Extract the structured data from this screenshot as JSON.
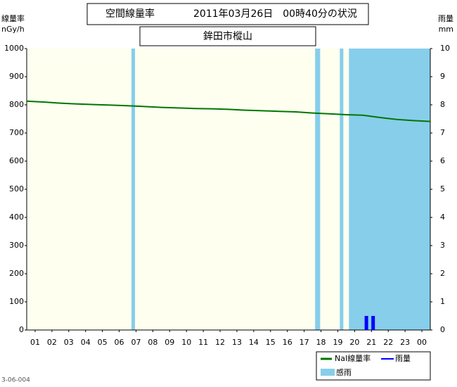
{
  "chart_data": {
    "type": "line",
    "title": "空間線量率",
    "date_text": "2011年03月26日　00時40分の状況",
    "subtitle": "鉾田市樅山",
    "y_label": "線量率",
    "y_unit": "nGy/h",
    "y2_label": "雨量",
    "y2_unit": "mm",
    "footer": "3-06-004",
    "background": "#fffff0",
    "xlim": [
      0,
      24
    ],
    "xticks": [
      {
        "value": 0.5,
        "label": "01"
      },
      {
        "value": 1.5,
        "label": "02"
      },
      {
        "value": 2.5,
        "label": "03"
      },
      {
        "value": 3.5,
        "label": "04"
      },
      {
        "value": 4.5,
        "label": "05"
      },
      {
        "value": 5.5,
        "label": "06"
      },
      {
        "value": 6.5,
        "label": "07"
      },
      {
        "value": 7.5,
        "label": "08"
      },
      {
        "value": 8.5,
        "label": "09"
      },
      {
        "value": 9.5,
        "label": "10"
      },
      {
        "value": 10.5,
        "label": "11"
      },
      {
        "value": 11.5,
        "label": "12"
      },
      {
        "value": 12.5,
        "label": "13"
      },
      {
        "value": 13.5,
        "label": "14"
      },
      {
        "value": 14.5,
        "label": "15"
      },
      {
        "value": 15.5,
        "label": "16"
      },
      {
        "value": 16.5,
        "label": "17"
      },
      {
        "value": 17.5,
        "label": "18"
      },
      {
        "value": 18.5,
        "label": "19"
      },
      {
        "value": 19.5,
        "label": "20"
      },
      {
        "value": 20.5,
        "label": "21"
      },
      {
        "value": 21.5,
        "label": "22"
      },
      {
        "value": 22.5,
        "label": "23"
      },
      {
        "value": 23.5,
        "label": "00"
      }
    ],
    "ylim": [
      0,
      1000
    ],
    "yticks": [
      0,
      100,
      200,
      300,
      400,
      500,
      600,
      700,
      800,
      900,
      1000
    ],
    "y2lim": [
      0,
      10
    ],
    "y2ticks": [
      0,
      1,
      2,
      3,
      4,
      5,
      6,
      7,
      8,
      9,
      10
    ],
    "series": [
      {
        "name": "NaI線量率",
        "color": "#007700",
        "x": [
          0,
          1,
          2,
          3,
          4,
          5,
          6,
          7,
          8,
          9,
          10,
          11,
          12,
          13,
          14,
          15,
          16,
          17,
          18,
          19,
          20,
          21,
          22,
          23,
          24
        ],
        "values": [
          813,
          810,
          806,
          803,
          801,
          799,
          797,
          794,
          791,
          789,
          787,
          786,
          784,
          781,
          779,
          777,
          775,
          771,
          768,
          765,
          763,
          755,
          748,
          744,
          741
        ]
      },
      {
        "name": "雨量",
        "color": "#0000ff",
        "axis": "y2",
        "type": "bar",
        "x": [
          20.2,
          20.6
        ],
        "values": [
          0.5,
          0.5
        ]
      }
    ],
    "rain_sensed": {
      "name": "感雨",
      "color": "#87ceeb",
      "ranges": [
        [
          6.23,
          6.44
        ],
        [
          17.15,
          17.45
        ],
        [
          18.62,
          18.83
        ],
        [
          19.16,
          24
        ]
      ]
    }
  }
}
